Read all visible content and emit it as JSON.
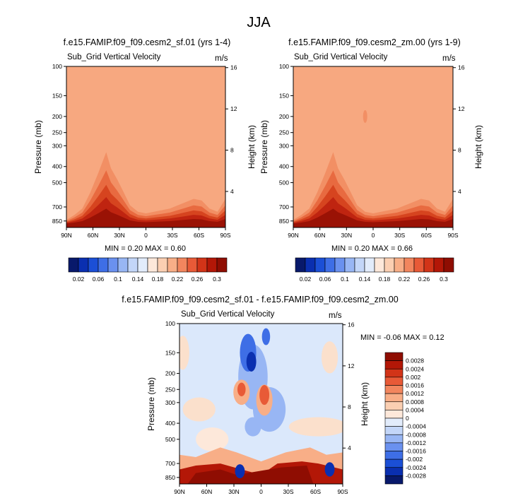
{
  "page": {
    "title": "JJA"
  },
  "colors": {
    "blues": [
      "#08196b",
      "#0a2fb0",
      "#1b4fd6",
      "#3e6ee6",
      "#6a91ef",
      "#98b6f4",
      "#c3d6f8",
      "#e2ecfb"
    ],
    "reds": [
      "#fde8da",
      "#fbcfb2",
      "#f8ae87",
      "#f2865e",
      "#e85a37",
      "#d23418",
      "#b31707",
      "#8f0d02"
    ],
    "background": "#f7a880"
  },
  "chart_data": [
    {
      "id": "top-left",
      "type": "heatmap",
      "title": "f.e15.FAMIP.f09_f09.cesm2_sf.01 (yrs 1-4)",
      "subtitle": "Sub_Grid Vertical Velocity",
      "units": "m/s",
      "ylabel": "Pressure (mb)",
      "ylabel_right": "Height (km)",
      "x_ticks": [
        "90N",
        "60N",
        "30N",
        "0",
        "30S",
        "60S",
        "90S"
      ],
      "y_ticks": [
        "100",
        "150",
        "200",
        "250",
        "300",
        "400",
        "500",
        "700",
        "850"
      ],
      "y_right_ticks": [
        "16",
        "12",
        "8",
        "4"
      ],
      "stats": "MIN =  0.20  MAX =  0.60",
      "profile_x": [
        0,
        0.05,
        0.1,
        0.15,
        0.2,
        0.25,
        0.28,
        0.32,
        0.35,
        0.4,
        0.45,
        0.5,
        0.55,
        0.6,
        0.65,
        0.7,
        0.75,
        0.8,
        0.85,
        0.9,
        0.95,
        1
      ],
      "profile_h": [
        0.03,
        0.06,
        0.1,
        0.2,
        0.32,
        0.45,
        0.35,
        0.28,
        0.22,
        0.12,
        0.08,
        0.07,
        0.08,
        0.09,
        0.1,
        0.12,
        0.14,
        0.16,
        0.15,
        0.1,
        0.08,
        0.16
      ]
    },
    {
      "id": "top-right",
      "type": "heatmap",
      "title": "f.e15.FAMIP.f09_f09.cesm2_zm.00 (yrs 1-9)",
      "subtitle": "Sub_Grid Vertical Velocity",
      "units": "m/s",
      "ylabel": "Pressure (mb)",
      "ylabel_right": "Height (km)",
      "x_ticks": [
        "90N",
        "60N",
        "30N",
        "0",
        "30S",
        "60S",
        "90S"
      ],
      "y_ticks": [
        "100",
        "150",
        "200",
        "250",
        "300",
        "400",
        "500",
        "700",
        "850"
      ],
      "y_right_ticks": [
        "16",
        "12",
        "8",
        "4"
      ],
      "stats": "MIN =  0.20  MAX =  0.66",
      "profile_x": [
        0,
        0.05,
        0.1,
        0.15,
        0.2,
        0.25,
        0.28,
        0.32,
        0.35,
        0.4,
        0.45,
        0.5,
        0.55,
        0.6,
        0.65,
        0.7,
        0.75,
        0.8,
        0.85,
        0.9,
        0.95,
        1
      ],
      "profile_h": [
        0.03,
        0.06,
        0.1,
        0.2,
        0.32,
        0.45,
        0.35,
        0.28,
        0.22,
        0.12,
        0.08,
        0.07,
        0.08,
        0.09,
        0.1,
        0.12,
        0.14,
        0.16,
        0.15,
        0.1,
        0.08,
        0.16
      ]
    },
    {
      "id": "bottom",
      "type": "heatmap",
      "title": "f.e15.FAMIP.f09_f09.cesm2_sf.01 - f.e15.FAMIP.f09_f09.cesm2_zm.00",
      "subtitle": "Sub_Grid Vertical Velocity",
      "units": "m/s",
      "ylabel": "Pressure (mb)",
      "ylabel_right": "Height (km)",
      "x_ticks": [
        "90N",
        "60N",
        "30N",
        "0",
        "30S",
        "60S",
        "90S"
      ],
      "y_ticks": [
        "100",
        "150",
        "200",
        "250",
        "300",
        "400",
        "500",
        "700",
        "850"
      ],
      "y_right_ticks": [
        "16",
        "12",
        "8",
        "4"
      ],
      "stats": "MIN =  -0.06  MAX =  0.12"
    }
  ],
  "colorbar_top": {
    "labels": [
      "0.02",
      "0.06",
      "0.1",
      "0.14",
      "0.18",
      "0.22",
      "0.26",
      "0.3"
    ]
  },
  "colorbar_diff": {
    "labels": [
      "0.0028",
      "0.0024",
      "0.002",
      "0.0016",
      "0.0012",
      "0.0008",
      "0.0004",
      "0",
      "-0.0004",
      "-0.0008",
      "-0.0012",
      "-0.0016",
      "-0.002",
      "-0.0024",
      "-0.0028"
    ]
  }
}
